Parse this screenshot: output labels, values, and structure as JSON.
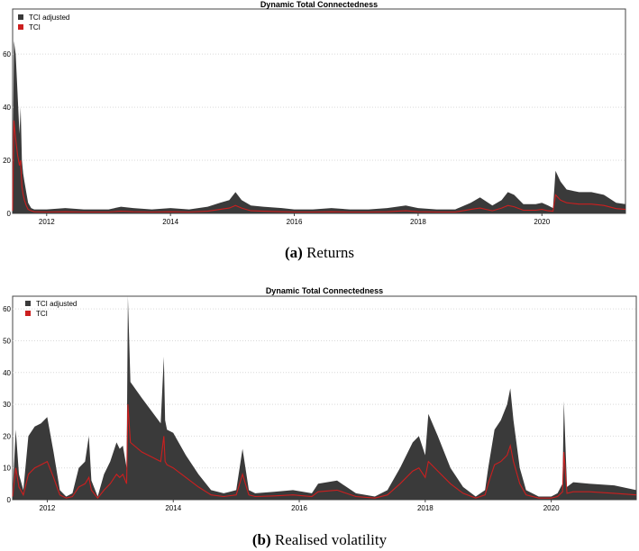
{
  "colors": {
    "adjusted": "#3a3a3a",
    "tci": "#cc1f1f",
    "grid": "#d9d9d9",
    "frame": "#444444"
  },
  "captions": [
    {
      "letter": "(a)",
      "text": "Returns"
    },
    {
      "letter": "(b)",
      "text": "Realised volatility"
    }
  ],
  "chart_data": [
    {
      "type": "area",
      "title": "Dynamic Total Connectedness",
      "legend_position": "top-left",
      "grid": true,
      "xlim": [
        2011.45,
        2021.35
      ],
      "ylim": [
        0,
        77
      ],
      "xticks": [
        2012,
        2014,
        2016,
        2018,
        2020
      ],
      "yticks": [
        0,
        20,
        40,
        60
      ],
      "series": [
        {
          "name": "TCI adjusted",
          "style": "filled-area",
          "x": [
            2011.45,
            2011.47,
            2011.5,
            2011.53,
            2011.56,
            2011.58,
            2011.6,
            2011.62,
            2011.64,
            2011.67,
            2011.7,
            2011.75,
            2011.8,
            2012.0,
            2012.3,
            2012.6,
            2013.0,
            2013.2,
            2013.4,
            2013.7,
            2014.0,
            2014.3,
            2014.6,
            2014.8,
            2014.95,
            2015.05,
            2015.15,
            2015.3,
            2015.5,
            2015.8,
            2016.0,
            2016.3,
            2016.6,
            2016.9,
            2017.2,
            2017.5,
            2017.8,
            2018.0,
            2018.3,
            2018.6,
            2018.85,
            2019.0,
            2019.2,
            2019.35,
            2019.45,
            2019.55,
            2019.7,
            2019.9,
            2020.0,
            2020.1,
            2020.18,
            2020.22,
            2020.3,
            2020.4,
            2020.6,
            2020.8,
            2021.0,
            2021.2,
            2021.35
          ],
          "values": [
            2,
            65,
            60,
            45,
            30,
            40,
            20,
            15,
            12,
            8,
            4,
            2,
            1.5,
            1.5,
            2,
            1.5,
            1.5,
            2.5,
            2,
            1.5,
            2,
            1.5,
            2.5,
            4,
            5,
            8,
            5,
            3,
            2.5,
            2,
            1.5,
            1.5,
            2,
            1.5,
            1.5,
            2,
            3,
            2,
            1.5,
            1.5,
            4,
            6,
            3,
            5,
            8,
            7,
            3.5,
            3.5,
            4,
            3,
            2,
            16,
            12,
            9,
            8,
            8,
            7,
            4,
            3.5
          ]
        },
        {
          "name": "TCI",
          "style": "line",
          "x": [
            2011.45,
            2011.47,
            2011.5,
            2011.53,
            2011.56,
            2011.58,
            2011.6,
            2011.62,
            2011.64,
            2011.67,
            2011.7,
            2011.75,
            2011.8,
            2012.0,
            2012.3,
            2012.6,
            2013.0,
            2013.2,
            2013.4,
            2013.7,
            2014.0,
            2014.3,
            2014.6,
            2014.8,
            2014.95,
            2015.05,
            2015.15,
            2015.3,
            2015.5,
            2015.8,
            2016.0,
            2016.3,
            2016.6,
            2016.9,
            2017.2,
            2017.5,
            2017.8,
            2018.0,
            2018.3,
            2018.6,
            2018.85,
            2019.0,
            2019.2,
            2019.35,
            2019.45,
            2019.55,
            2019.7,
            2019.9,
            2020.0,
            2020.1,
            2020.18,
            2020.22,
            2020.3,
            2020.4,
            2020.6,
            2020.8,
            2021.0,
            2021.2,
            2021.35
          ],
          "values": [
            1,
            35,
            28,
            22,
            18,
            20,
            10,
            7,
            5,
            3,
            1.5,
            1,
            0.6,
            0.5,
            0.6,
            0.5,
            0.5,
            0.8,
            0.6,
            0.5,
            0.6,
            0.5,
            0.8,
            1.5,
            2,
            3,
            2,
            1,
            0.8,
            0.6,
            0.5,
            0.5,
            0.6,
            0.5,
            0.5,
            0.6,
            1,
            0.6,
            0.5,
            0.5,
            1.5,
            2,
            1,
            2,
            3,
            2.5,
            1.2,
            1.2,
            1.5,
            1,
            0.8,
            7,
            5,
            4,
            3.5,
            3.5,
            3,
            1.8,
            1.5
          ]
        }
      ]
    },
    {
      "type": "area",
      "title": "Dynamic Total Connectedness",
      "legend_position": "top-left",
      "grid": true,
      "xlim": [
        2011.45,
        2021.35
      ],
      "ylim": [
        0,
        64
      ],
      "xticks": [
        2012,
        2014,
        2016,
        2018,
        2020
      ],
      "yticks": [
        0,
        10,
        20,
        30,
        40,
        50,
        60
      ],
      "series": [
        {
          "name": "TCI adjusted",
          "style": "filled-area",
          "x": [
            2011.45,
            2011.5,
            2011.55,
            2011.62,
            2011.7,
            2011.8,
            2011.9,
            2012.0,
            2012.1,
            2012.2,
            2012.3,
            2012.4,
            2012.5,
            2012.6,
            2012.66,
            2012.7,
            2012.8,
            2012.9,
            2013.0,
            2013.1,
            2013.15,
            2013.2,
            2013.26,
            2013.28,
            2013.32,
            2013.5,
            2013.8,
            2013.85,
            2013.87,
            2013.9,
            2014.0,
            2014.2,
            2014.4,
            2014.6,
            2014.8,
            2015.0,
            2015.1,
            2015.2,
            2015.3,
            2015.6,
            2015.9,
            2016.2,
            2016.3,
            2016.6,
            2016.9,
            2017.2,
            2017.4,
            2017.6,
            2017.8,
            2017.9,
            2018.0,
            2018.05,
            2018.2,
            2018.4,
            2018.6,
            2018.8,
            2018.95,
            2019.0,
            2019.1,
            2019.2,
            2019.3,
            2019.35,
            2019.4,
            2019.5,
            2019.6,
            2019.8,
            2020.0,
            2020.1,
            2020.18,
            2020.2,
            2020.25,
            2020.35,
            2020.6,
            2021.0,
            2021.35
          ],
          "values": [
            2,
            22,
            8,
            3,
            20,
            23,
            24,
            26,
            15,
            3,
            1,
            2,
            10,
            12,
            20,
            6,
            1,
            8,
            12,
            18,
            16,
            17,
            10,
            64,
            37,
            32,
            24,
            45,
            25,
            22,
            21,
            14,
            8,
            3,
            2,
            3,
            16,
            3,
            2,
            2.5,
            3,
            2,
            5,
            6,
            2,
            1,
            3,
            10,
            18,
            20,
            14,
            27,
            20,
            10,
            4,
            1,
            3,
            10,
            22,
            25,
            30,
            35,
            25,
            10,
            3,
            1,
            1,
            2,
            5,
            31,
            4,
            5.5,
            5,
            4.5,
            3
          ]
        },
        {
          "name": "TCI",
          "style": "line",
          "x": [
            2011.45,
            2011.5,
            2011.55,
            2011.62,
            2011.7,
            2011.8,
            2011.9,
            2012.0,
            2012.1,
            2012.2,
            2012.3,
            2012.4,
            2012.5,
            2012.6,
            2012.66,
            2012.7,
            2012.8,
            2012.9,
            2013.0,
            2013.1,
            2013.15,
            2013.2,
            2013.26,
            2013.28,
            2013.32,
            2013.5,
            2013.8,
            2013.85,
            2013.87,
            2013.9,
            2014.0,
            2014.2,
            2014.4,
            2014.6,
            2014.8,
            2015.0,
            2015.1,
            2015.2,
            2015.3,
            2015.6,
            2015.9,
            2016.2,
            2016.3,
            2016.6,
            2016.9,
            2017.2,
            2017.4,
            2017.6,
            2017.8,
            2017.9,
            2018.0,
            2018.05,
            2018.2,
            2018.4,
            2018.6,
            2018.8,
            2018.95,
            2019.0,
            2019.1,
            2019.2,
            2019.3,
            2019.35,
            2019.4,
            2019.5,
            2019.6,
            2019.8,
            2020.0,
            2020.1,
            2020.18,
            2020.2,
            2020.25,
            2020.35,
            2020.6,
            2021.0,
            2021.35
          ],
          "values": [
            1,
            10,
            4,
            1.5,
            8,
            10,
            11,
            12,
            7,
            1.5,
            0.5,
            1,
            4,
            5,
            7,
            3,
            0.5,
            3,
            5,
            8,
            7,
            8,
            5,
            30,
            18,
            15,
            12,
            20,
            12,
            11,
            10,
            7,
            4,
            1.5,
            1,
            1.5,
            8,
            1.5,
            1,
            1.2,
            1.5,
            1,
            2.5,
            3,
            1,
            0.5,
            1.5,
            5,
            9,
            10,
            7,
            12,
            9,
            5,
            2,
            0.5,
            1.5,
            5,
            11,
            12,
            14,
            17,
            12,
            5,
            1.5,
            0.5,
            0.5,
            1,
            2.5,
            15,
            2,
            2.5,
            2.5,
            2,
            1.5
          ]
        }
      ]
    }
  ]
}
